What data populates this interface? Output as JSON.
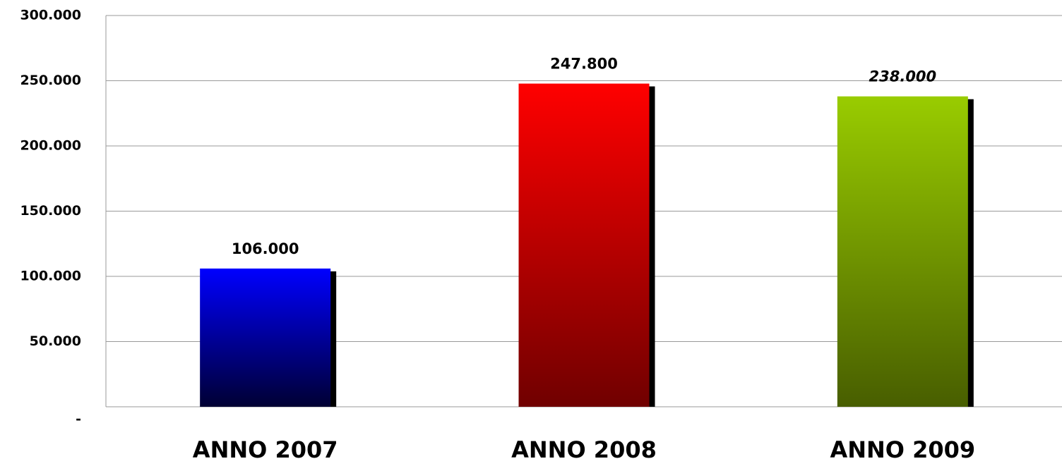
{
  "chart_data": {
    "type": "bar",
    "categories": [
      "ANNO 2007",
      "ANNO 2008",
      "ANNO 2009"
    ],
    "values": [
      106000,
      247800,
      238000
    ],
    "value_labels": [
      "106.000",
      "247.800",
      "238.000"
    ],
    "value_label_styles": [
      "normal",
      "normal",
      "italic"
    ],
    "colors": [
      "#0000ff",
      "#ff0000",
      "#99cc00"
    ],
    "colors_bottom": [
      "#000033",
      "#700000",
      "#485e00"
    ],
    "ylim": [
      0,
      300000
    ],
    "yticks": [
      {
        "value": 0,
        "label": "-"
      },
      {
        "value": 50000,
        "label": "50.000"
      },
      {
        "value": 100000,
        "label": "100.000"
      },
      {
        "value": 150000,
        "label": "150.000"
      },
      {
        "value": 200000,
        "label": "200.000"
      },
      {
        "value": 250000,
        "label": "250.000"
      },
      {
        "value": 300000,
        "label": "300.000"
      }
    ],
    "grid": true
  }
}
